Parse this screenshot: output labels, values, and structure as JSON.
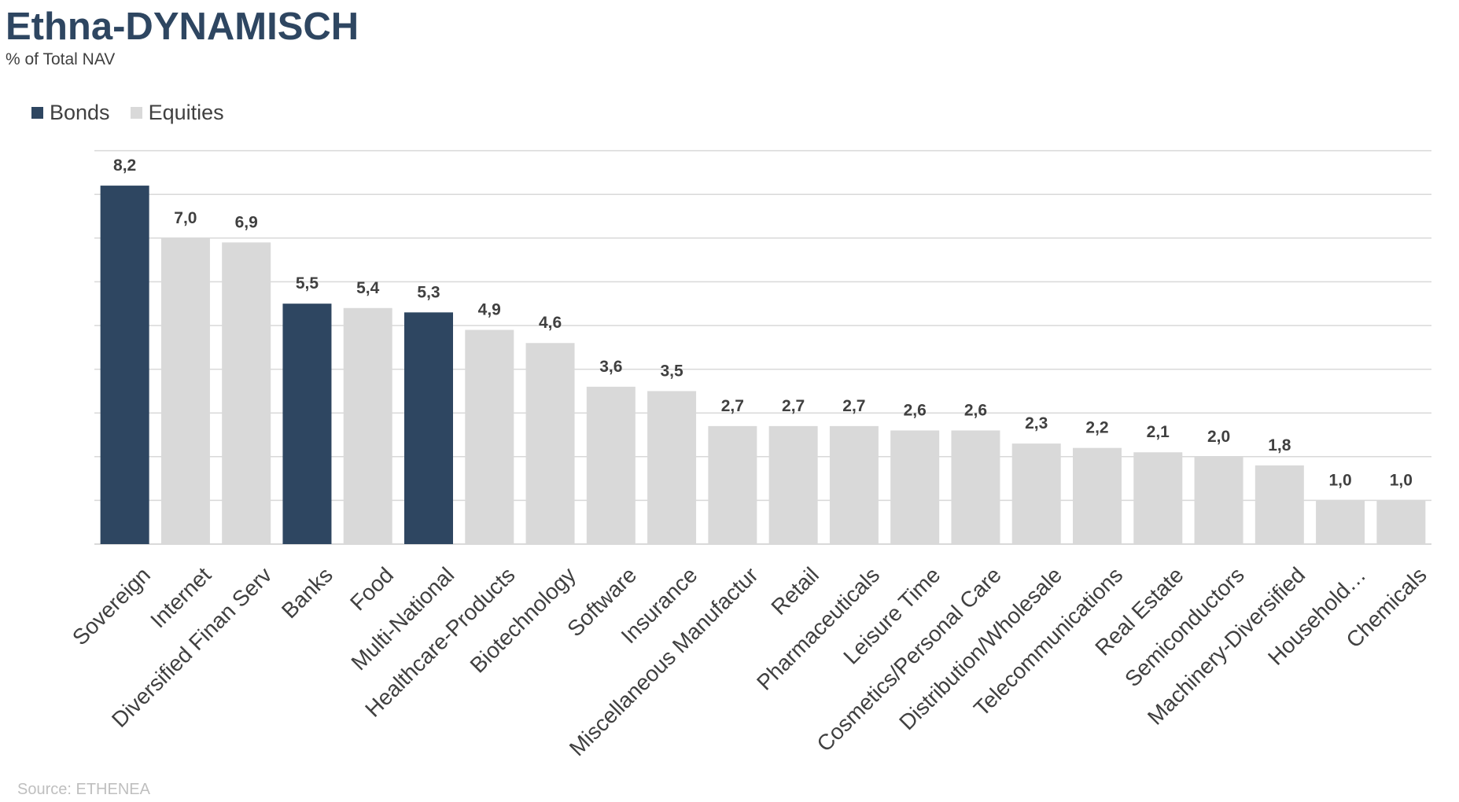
{
  "title": "Ethna-DYNAMISCH",
  "subtitle": "% of Total NAV",
  "source": "Source: ETHENEA",
  "legend": [
    {
      "name": "Bonds",
      "color": "#2e4661"
    },
    {
      "name": "Equities",
      "color": "#d9d9d9"
    }
  ],
  "chart_data": {
    "type": "bar",
    "title": "Ethna-DYNAMISCH",
    "subtitle": "% of Total NAV",
    "ylim": [
      0,
      9
    ],
    "grid": true,
    "legend_position": "top-left",
    "categories": [
      "Sovereign",
      "Internet",
      "Diversified Finan Serv",
      "Banks",
      "Food",
      "Multi-National",
      "Healthcare-Products",
      "Biotechnology",
      "Software",
      "Insurance",
      "Miscellaneous Manufactur",
      "Retail",
      "Pharmaceuticals",
      "Leisure Time",
      "Cosmetics/Personal Care",
      "Distribution/Wholesale",
      "Telecommunications",
      "Real Estate",
      "Semiconductors",
      "Machinery-Diversified",
      "Household…",
      "Chemicals"
    ],
    "values": [
      8.2,
      7.0,
      6.9,
      5.5,
      5.4,
      5.3,
      4.9,
      4.6,
      3.6,
      3.5,
      2.7,
      2.7,
      2.7,
      2.6,
      2.6,
      2.3,
      2.2,
      2.1,
      2.0,
      1.8,
      1.0,
      1.0
    ],
    "labels": [
      "8,2",
      "7,0",
      "6,9",
      "5,5",
      "5,4",
      "5,3",
      "4,9",
      "4,6",
      "3,6",
      "3,5",
      "2,7",
      "2,7",
      "2,7",
      "2,6",
      "2,6",
      "2,3",
      "2,2",
      "2,1",
      "2,0",
      "1,8",
      "1,0",
      "1,0"
    ],
    "series_of_bar": [
      "Bonds",
      "Equities",
      "Equities",
      "Bonds",
      "Equities",
      "Bonds",
      "Equities",
      "Equities",
      "Equities",
      "Equities",
      "Equities",
      "Equities",
      "Equities",
      "Equities",
      "Equities",
      "Equities",
      "Equities",
      "Equities",
      "Equities",
      "Equities",
      "Equities",
      "Equities"
    ],
    "series": [
      {
        "name": "Bonds",
        "color": "#2e4661"
      },
      {
        "name": "Equities",
        "color": "#d9d9d9"
      }
    ]
  }
}
